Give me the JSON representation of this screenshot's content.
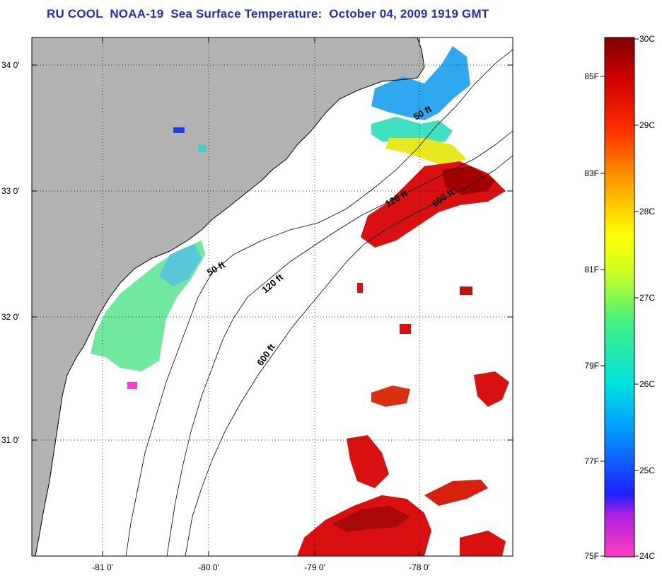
{
  "title": "RU COOL  NOAA-19  Sea Surface Temperature:  October 04, 2009 1919 GMT",
  "map": {
    "lon_ticks": [
      "-81 0'",
      "-80 0'",
      "-79 0'",
      "-78 0'"
    ],
    "lat_ticks": [
      "34 0'",
      "33 0'",
      "32 0'",
      "31 0'"
    ],
    "contour_labels": [
      "50 ft",
      "120 ft",
      "600 ft",
      "50 ft",
      "120 ft",
      "600 ft"
    ],
    "colors": {
      "land": "#b3b3b3",
      "cloud": "#ffffff",
      "coastline": "#000000"
    }
  },
  "colorbar": {
    "fahrenheit_ticks": [
      "85F",
      "83F",
      "81F",
      "79F",
      "77F",
      "75F"
    ],
    "celsius_ticks": [
      "30C",
      "29C",
      "28C",
      "27C",
      "26C",
      "25C",
      "24C"
    ],
    "range_c": [
      24,
      30
    ],
    "range_f": [
      75,
      86
    ]
  }
}
